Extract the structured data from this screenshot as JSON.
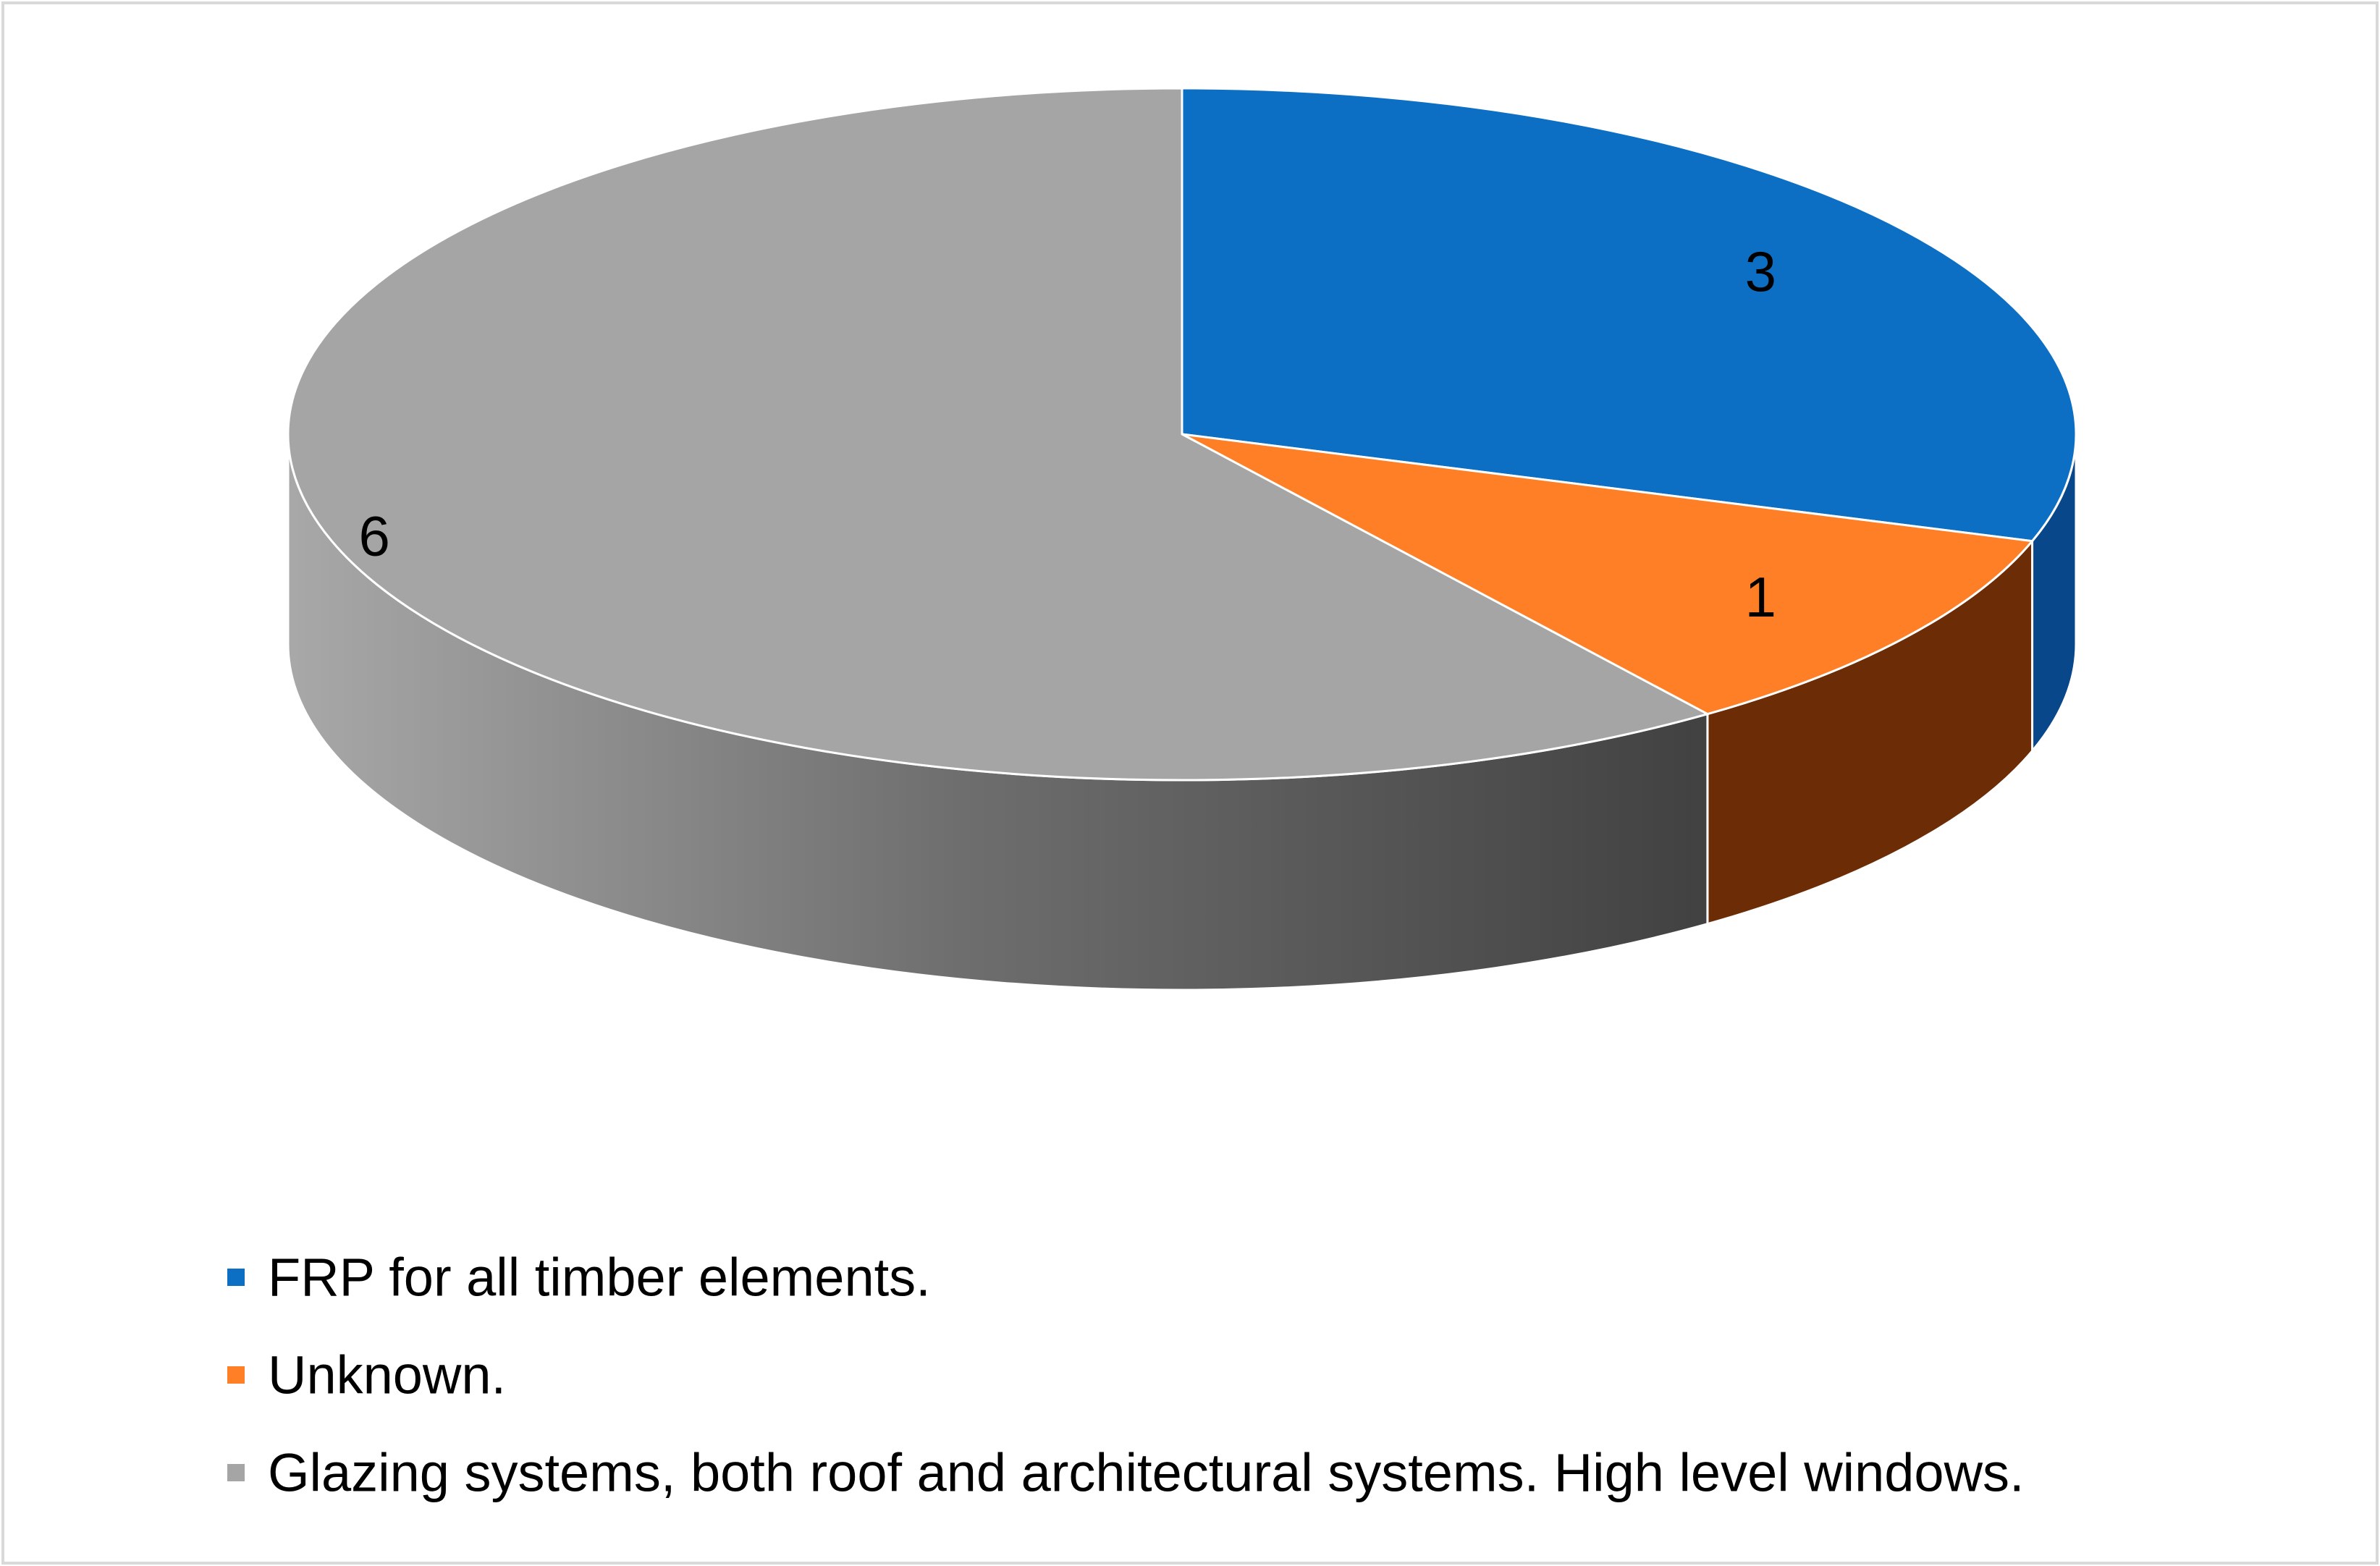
{
  "chart_data": {
    "type": "pie",
    "style": "3d",
    "title": "",
    "legend_position": "bottom",
    "data_labels": "value",
    "categories": [
      "FRP for all timber elements.",
      "Unknown.",
      "Glazing systems, both roof and architectural systems. High level windows."
    ],
    "values": [
      3,
      1,
      6
    ],
    "colors": [
      "#0D6FC4",
      "#FF7F27",
      "#A5A5A5"
    ],
    "side_colors": [
      "#08478A",
      "#6B2C06",
      "#7A7A7A"
    ]
  }
}
